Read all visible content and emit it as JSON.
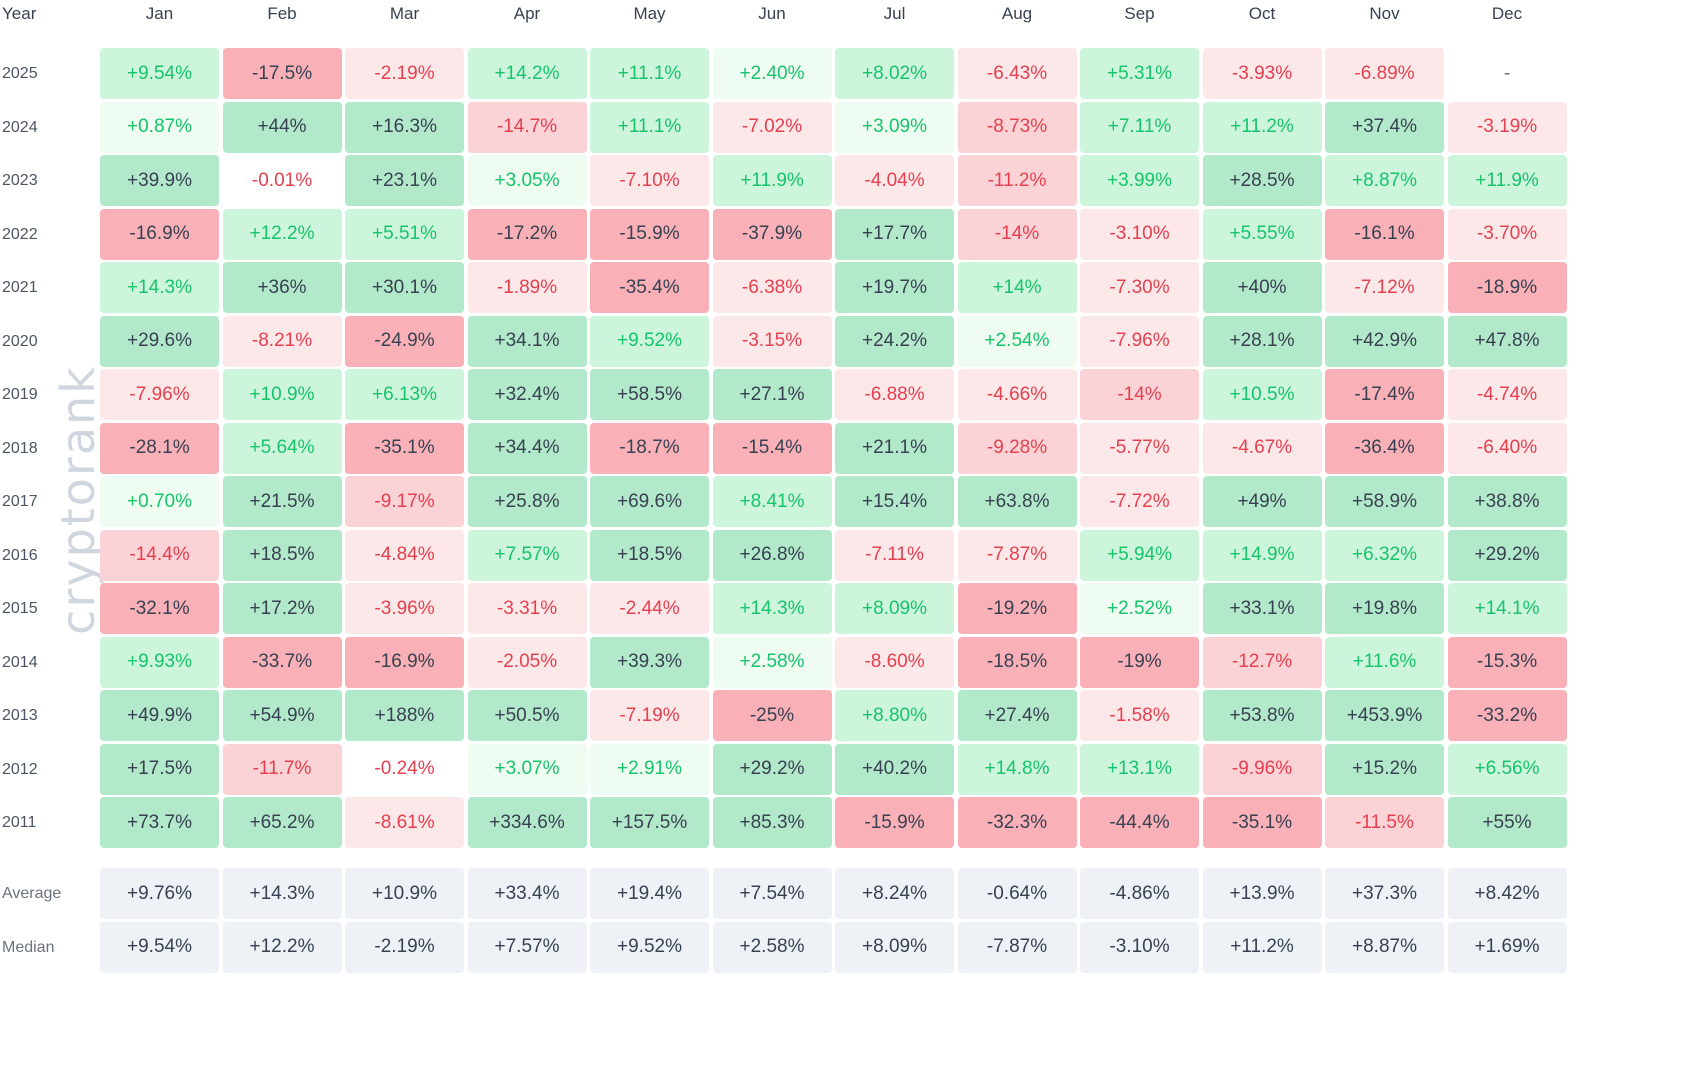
{
  "chart_data": {
    "type": "heatmap",
    "watermark": "cryptorank",
    "corner_label": "Year",
    "columns": [
      "Jan",
      "Feb",
      "Mar",
      "Apr",
      "May",
      "Jun",
      "Jul",
      "Aug",
      "Sep",
      "Oct",
      "Nov",
      "Dec"
    ],
    "rows": [
      {
        "year": "2025",
        "values": [
          "+9.54%",
          "-17.5%",
          "-2.19%",
          "+14.2%",
          "+11.1%",
          "+2.40%",
          "+8.02%",
          "-6.43%",
          "+5.31%",
          "-3.93%",
          "-6.89%",
          "-"
        ]
      },
      {
        "year": "2024",
        "values": [
          "+0.87%",
          "+44%",
          "+16.3%",
          "-14.7%",
          "+11.1%",
          "-7.02%",
          "+3.09%",
          "-8.73%",
          "+7.11%",
          "+11.2%",
          "+37.4%",
          "-3.19%"
        ]
      },
      {
        "year": "2023",
        "values": [
          "+39.9%",
          "-0.01%",
          "+23.1%",
          "+3.05%",
          "-7.10%",
          "+11.9%",
          "-4.04%",
          "-11.2%",
          "+3.99%",
          "+28.5%",
          "+8.87%",
          "+11.9%"
        ]
      },
      {
        "year": "2022",
        "values": [
          "-16.9%",
          "+12.2%",
          "+5.51%",
          "-17.2%",
          "-15.9%",
          "-37.9%",
          "+17.7%",
          "-14%",
          "-3.10%",
          "+5.55%",
          "-16.1%",
          "-3.70%"
        ]
      },
      {
        "year": "2021",
        "values": [
          "+14.3%",
          "+36%",
          "+30.1%",
          "-1.89%",
          "-35.4%",
          "-6.38%",
          "+19.7%",
          "+14%",
          "-7.30%",
          "+40%",
          "-7.12%",
          "-18.9%"
        ]
      },
      {
        "year": "2020",
        "values": [
          "+29.6%",
          "-8.21%",
          "-24.9%",
          "+34.1%",
          "+9.52%",
          "-3.15%",
          "+24.2%",
          "+2.54%",
          "-7.96%",
          "+28.1%",
          "+42.9%",
          "+47.8%"
        ]
      },
      {
        "year": "2019",
        "values": [
          "-7.96%",
          "+10.9%",
          "+6.13%",
          "+32.4%",
          "+58.5%",
          "+27.1%",
          "-6.88%",
          "-4.66%",
          "-14%",
          "+10.5%",
          "-17.4%",
          "-4.74%"
        ]
      },
      {
        "year": "2018",
        "values": [
          "-28.1%",
          "+5.64%",
          "-35.1%",
          "+34.4%",
          "-18.7%",
          "-15.4%",
          "+21.1%",
          "-9.28%",
          "-5.77%",
          "-4.67%",
          "-36.4%",
          "-6.40%"
        ]
      },
      {
        "year": "2017",
        "values": [
          "+0.70%",
          "+21.5%",
          "-9.17%",
          "+25.8%",
          "+69.6%",
          "+8.41%",
          "+15.4%",
          "+63.8%",
          "-7.72%",
          "+49%",
          "+58.9%",
          "+38.8%"
        ]
      },
      {
        "year": "2016",
        "values": [
          "-14.4%",
          "+18.5%",
          "-4.84%",
          "+7.57%",
          "+18.5%",
          "+26.8%",
          "-7.11%",
          "-7.87%",
          "+5.94%",
          "+14.9%",
          "+6.32%",
          "+29.2%"
        ]
      },
      {
        "year": "2015",
        "values": [
          "-32.1%",
          "+17.2%",
          "-3.96%",
          "-3.31%",
          "-2.44%",
          "+14.3%",
          "+8.09%",
          "-19.2%",
          "+2.52%",
          "+33.1%",
          "+19.8%",
          "+14.1%"
        ]
      },
      {
        "year": "2014",
        "values": [
          "+9.93%",
          "-33.7%",
          "-16.9%",
          "-2.05%",
          "+39.3%",
          "+2.58%",
          "-8.60%",
          "-18.5%",
          "-19%",
          "-12.7%",
          "+11.6%",
          "-15.3%"
        ]
      },
      {
        "year": "2013",
        "values": [
          "+49.9%",
          "+54.9%",
          "+188%",
          "+50.5%",
          "-7.19%",
          "-25%",
          "+8.80%",
          "+27.4%",
          "-1.58%",
          "+53.8%",
          "+453.9%",
          "-33.2%"
        ]
      },
      {
        "year": "2012",
        "values": [
          "+17.5%",
          "-11.7%",
          "-0.24%",
          "+3.07%",
          "+2.91%",
          "+29.2%",
          "+40.2%",
          "+14.8%",
          "+13.1%",
          "-9.96%",
          "+15.2%",
          "+6.56%"
        ]
      },
      {
        "year": "2011",
        "values": [
          "+73.7%",
          "+65.2%",
          "-8.61%",
          "+334.6%",
          "+157.5%",
          "+85.3%",
          "-15.9%",
          "-32.3%",
          "-44.4%",
          "-35.1%",
          "-11.5%",
          "+55%"
        ]
      }
    ],
    "summary": [
      {
        "label": "Average",
        "values": [
          "+9.76%",
          "+14.3%",
          "+10.9%",
          "+33.4%",
          "+19.4%",
          "+7.54%",
          "+8.24%",
          "-0.64%",
          "-4.86%",
          "+13.9%",
          "+37.3%",
          "+8.42%"
        ]
      },
      {
        "label": "Median",
        "values": [
          "+9.54%",
          "+12.2%",
          "-2.19%",
          "+7.57%",
          "+9.52%",
          "+2.58%",
          "+8.09%",
          "-7.87%",
          "-3.10%",
          "+11.2%",
          "+8.87%",
          "+1.69%"
        ]
      }
    ],
    "colors": {
      "positive_text": "#16c46a",
      "negative_text": "#e5404f",
      "strong_text": "#374151",
      "pos_1": "#eefcf2",
      "pos_2": "#cdf5dc",
      "pos_3": "#b3e9cb",
      "neg_1": "#fde8e9",
      "neg_2": "#fbd2d6",
      "neg_3": "#f9b0b7",
      "stat_bg": "#eef2f7",
      "watermark": "#cfd6df"
    }
  }
}
